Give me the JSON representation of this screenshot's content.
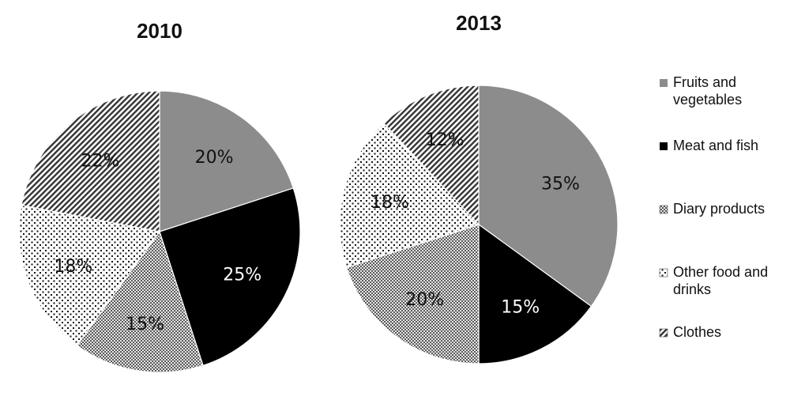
{
  "chart_data": [
    {
      "type": "pie",
      "title": "2010",
      "categories": [
        "Fruits and vegetables",
        "Meat and fish",
        "Diary products",
        "Other food and drinks",
        "Clothes"
      ],
      "values": [
        20,
        25,
        15,
        18,
        22
      ],
      "labels": [
        "20%",
        "25%",
        "15%",
        "18%",
        "22%"
      ],
      "unit": "%"
    },
    {
      "type": "pie",
      "title": "2013",
      "categories": [
        "Fruits and vegetables",
        "Meat and fish",
        "Diary products",
        "Other food and drinks",
        "Clothes"
      ],
      "values": [
        35,
        15,
        20,
        18,
        12
      ],
      "labels": [
        "35%",
        "15%",
        "20%",
        "18%",
        "12%"
      ],
      "unit": "%"
    }
  ],
  "legend": {
    "placement": "right",
    "entries": [
      {
        "lines": [
          "Fruits and",
          "vegetables"
        ],
        "pattern": "solid-gray"
      },
      {
        "lines": [
          "Meat and fish"
        ],
        "pattern": "solid-black"
      },
      {
        "lines": [
          "Diary products"
        ],
        "pattern": "checker"
      },
      {
        "lines": [
          "Other food and",
          "drinks"
        ],
        "pattern": "dots"
      },
      {
        "lines": [
          "Clothes"
        ],
        "pattern": "diagonal-stripes"
      }
    ]
  },
  "colors": {
    "fruits": "#8c8c8c",
    "meat": "#000000",
    "background": "#ffffff"
  }
}
